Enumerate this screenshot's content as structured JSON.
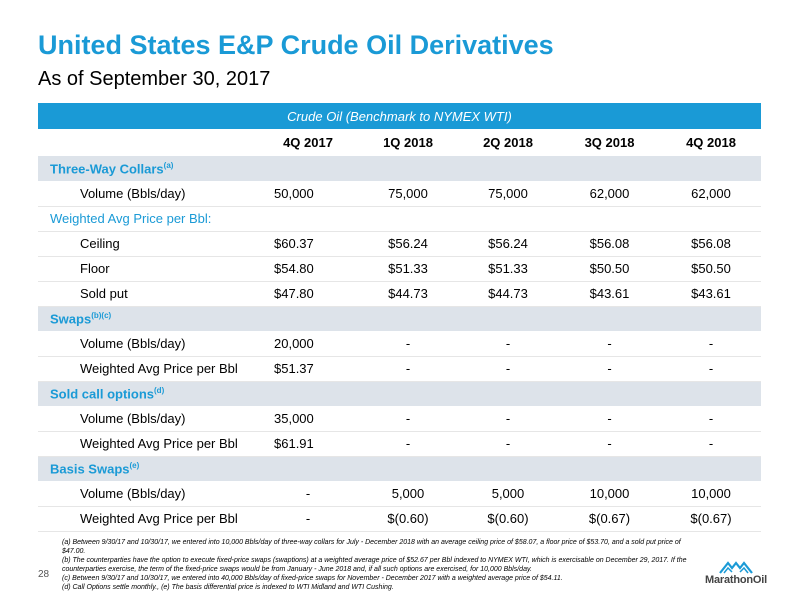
{
  "header": {
    "title": "United States E&P Crude Oil Derivatives",
    "subtitle": "As of September 30, 2017"
  },
  "table": {
    "band_label": "Crude Oil (Benchmark to NYMEX WTI)",
    "columns": [
      "4Q 2017",
      "1Q 2018",
      "2Q 2018",
      "3Q 2018",
      "4Q 2018"
    ],
    "sections": [
      {
        "label": "Three-Way Collars",
        "note": "(a)",
        "rows": [
          {
            "label": "Volume (Bbls/day)",
            "values": [
              "50,000",
              "75,000",
              "75,000",
              "62,000",
              "62,000"
            ]
          }
        ]
      },
      {
        "sublabel": "Weighted Avg Price per Bbl:",
        "rows": [
          {
            "label": "Ceiling",
            "values": [
              "$60.37",
              "$56.24",
              "$56.24",
              "$56.08",
              "$56.08"
            ]
          },
          {
            "label": "Floor",
            "values": [
              "$54.80",
              "$51.33",
              "$51.33",
              "$50.50",
              "$50.50"
            ]
          },
          {
            "label": "Sold put",
            "values": [
              "$47.80",
              "$44.73",
              "$44.73",
              "$43.61",
              "$43.61"
            ]
          }
        ]
      },
      {
        "label": "Swaps",
        "note": "(b)(c)",
        "rows": [
          {
            "label": "Volume (Bbls/day)",
            "values": [
              "20,000",
              "-",
              "-",
              "-",
              "-"
            ]
          },
          {
            "label": "Weighted Avg Price per Bbl",
            "values": [
              "$51.37",
              "-",
              "-",
              "-",
              "-"
            ]
          }
        ]
      },
      {
        "label": "Sold call options",
        "note": "(d)",
        "rows": [
          {
            "label": "Volume (Bbls/day)",
            "values": [
              "35,000",
              "-",
              "-",
              "-",
              "-"
            ]
          },
          {
            "label": "Weighted Avg Price per Bbl",
            "values": [
              "$61.91",
              "-",
              "-",
              "-",
              "-"
            ]
          }
        ]
      },
      {
        "label": "Basis Swaps",
        "note": "(e)",
        "rows": [
          {
            "label": "Volume (Bbls/day)",
            "values": [
              "-",
              "5,000",
              "5,000",
              "10,000",
              "10,000"
            ]
          },
          {
            "label": "Weighted Avg Price per Bbl",
            "values": [
              "-",
              "$(0.60)",
              "$(0.60)",
              "$(0.67)",
              "$(0.67)"
            ]
          }
        ]
      }
    ]
  },
  "footnotes": [
    "(a) Between 9/30/17 and 10/30/17, we entered into 10,000 Bbls/day of three-way collars for July - December 2018 with an average ceiling price of $58.07, a floor price of $53.70, and a sold put price of $47.00.",
    "(b) The counterparties have the option to execute fixed-price swaps (swaptions) at a weighted average price of $52.67 per Bbl indexed to NYMEX WTI, which is exercisable on December 29, 2017. If the counterparties exercise, the term of the fixed-price swaps would be from January - June 2018 and, if all such options are exercised, for 10,000 Bbls/day.",
    "(c) Between 9/30/17 and 10/30/17, we entered into 40,000 Bbls/day of fixed-price swaps for November - December 2017 with a weighted average price of $54.11.",
    "(d) Call Options settle monthly., (e) The basis differential price is indexed to WTI Midland and WTI Cushing."
  ],
  "page_number": "28",
  "logo_text": "MarathonOil",
  "colors": {
    "accent": "#1a9ad6",
    "section_bg": "#dde3ea"
  }
}
